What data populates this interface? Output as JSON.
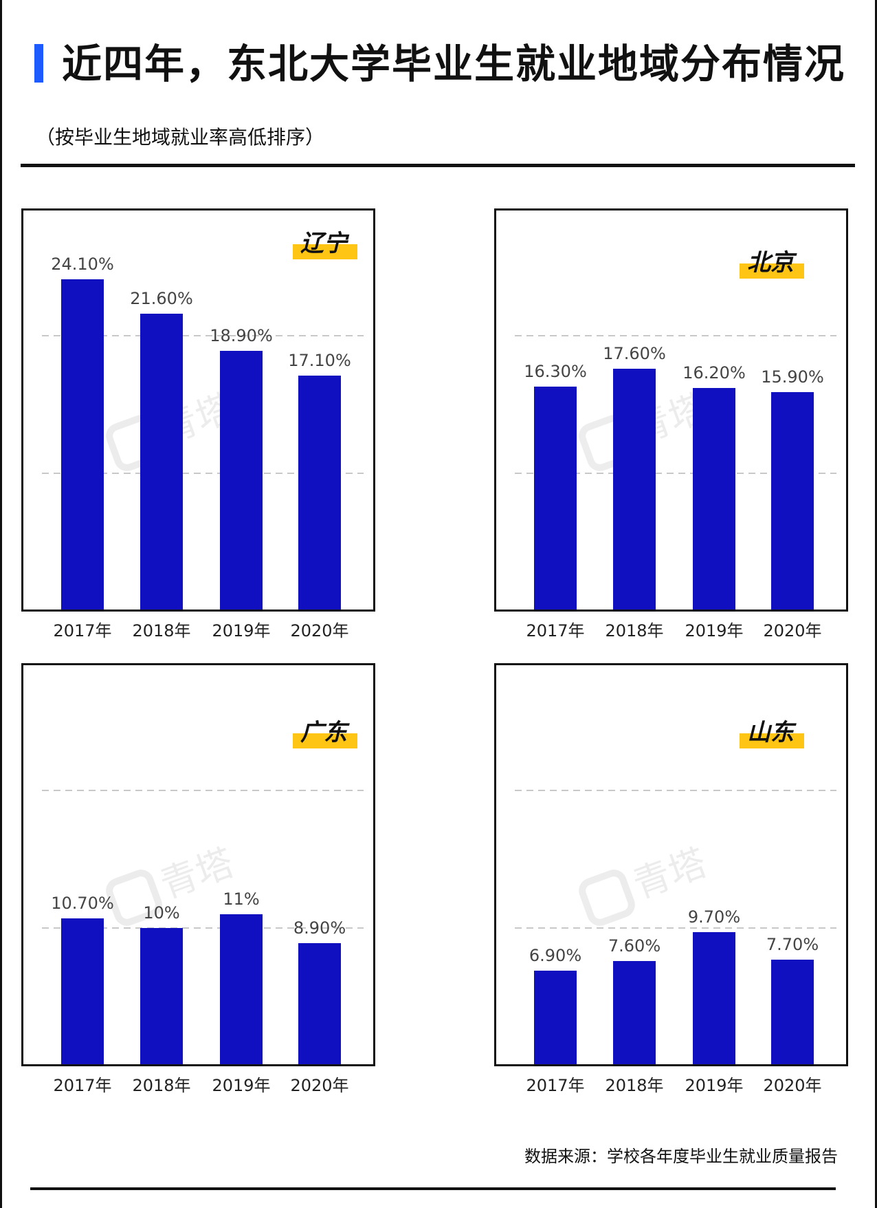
{
  "header": {
    "title": "近四年，东北大学毕业生就业地域分布情况",
    "subtitle": "（按毕业生地域就业率高低排序）"
  },
  "footer": {
    "source": "数据来源：学校各年度毕业生就业质量报告"
  },
  "watermark": "青塔",
  "colors": {
    "bar": "#1010c0",
    "accent": "#1e5bff",
    "tag": "#ffc514",
    "grid": "#c8c8c8"
  },
  "chart_data": [
    {
      "type": "bar",
      "title": "辽宁",
      "categories": [
        "2017年",
        "2018年",
        "2019年",
        "2020年"
      ],
      "values": [
        24.1,
        21.6,
        18.9,
        17.1
      ],
      "labels": [
        "24.10%",
        "21.60%",
        "18.90%",
        "17.10%"
      ],
      "ylim": [
        0,
        25
      ],
      "gridlines": [
        10,
        20
      ]
    },
    {
      "type": "bar",
      "title": "北京",
      "categories": [
        "2017年",
        "2018年",
        "2019年",
        "2020年"
      ],
      "values": [
        16.3,
        17.6,
        16.2,
        15.9
      ],
      "labels": [
        "16.30%",
        "17.60%",
        "16.20%",
        "15.90%"
      ],
      "ylim": [
        0,
        20
      ],
      "gridlines": [
        10,
        20
      ]
    },
    {
      "type": "bar",
      "title": "广东",
      "categories": [
        "2017年",
        "2018年",
        "2019年",
        "2020年"
      ],
      "values": [
        10.7,
        10,
        11,
        8.9
      ],
      "labels": [
        "10.70%",
        "10%",
        "11%",
        "8.90%"
      ],
      "ylim": [
        0,
        20
      ],
      "gridlines": [
        10,
        20
      ]
    },
    {
      "type": "bar",
      "title": "山东",
      "categories": [
        "2017年",
        "2018年",
        "2019年",
        "2020年"
      ],
      "values": [
        6.9,
        7.6,
        9.7,
        7.7
      ],
      "labels": [
        "6.90%",
        "7.60%",
        "9.70%",
        "7.70%"
      ],
      "ylim": [
        0,
        20
      ],
      "gridlines": [
        10,
        20
      ]
    }
  ]
}
